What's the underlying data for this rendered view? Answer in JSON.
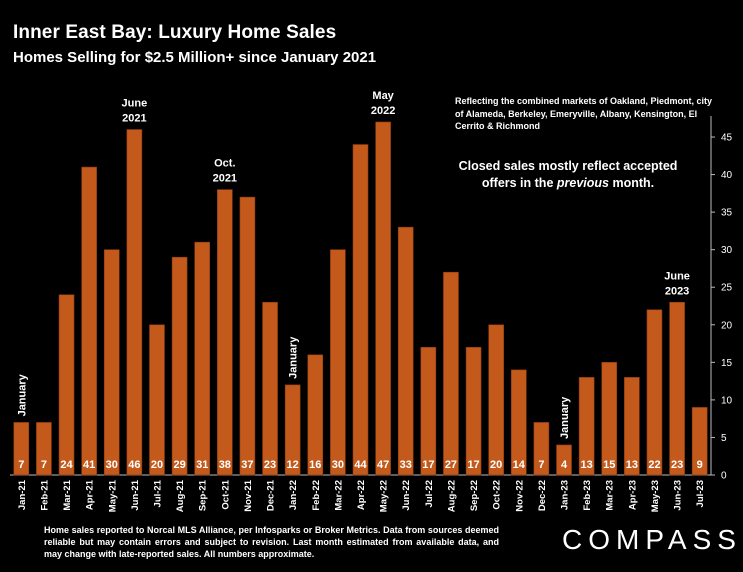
{
  "header": {
    "title": "Inner East Bay: Luxury Home Sales",
    "subtitle": "Homes Selling for $2.5 Million+ since January 2021"
  },
  "notes": {
    "markets": "Reflecting the combined markets of Oakland, Piedmont, city of Alameda, Berkeley, Emeryville, Albany, Kensington, El Cerrito & Richmond",
    "closed_sales_pre": "Closed sales mostly reflect accepted offers in the ",
    "closed_sales_em": "previous",
    "closed_sales_post": " month."
  },
  "footer": {
    "disclaimer": "Home sales reported to Norcal MLS Alliance, per Infosparks or Broker Metrics. Data from sources deemed reliable but may contain errors and subject to revision. Last month estimated from available data, and may change with late-reported sales. All numbers approximate.",
    "logo": "COMPASS"
  },
  "colors": {
    "bar": "#C35A1C",
    "bar_edge": "#8A3A10",
    "background": "#000000",
    "text": "#FFFFFF"
  },
  "chart_data": {
    "type": "bar",
    "title": "Inner East Bay: Luxury Home Sales",
    "subtitle": "Homes Selling for $2.5 Million+ since January 2021",
    "categories": [
      "Jan-21",
      "Feb-21",
      "Mar-21",
      "Apr-21",
      "May-21",
      "Jun-21",
      "Jul-21",
      "Aug-21",
      "Sep-21",
      "Oct-21",
      "Nov-21",
      "Dec-21",
      "Jan-22",
      "Feb-22",
      "Mar-22",
      "Apr-22",
      "May-22",
      "Jun-22",
      "Jul-22",
      "Aug-22",
      "Sep-22",
      "Oct-22",
      "Nov-22",
      "Dec-22",
      "Jan-23",
      "Feb-23",
      "Mar-23",
      "Apr-23",
      "May-23",
      "Jun-23",
      "Jul-23"
    ],
    "values": [
      7,
      7,
      24,
      41,
      30,
      46,
      20,
      29,
      31,
      38,
      37,
      23,
      12,
      16,
      30,
      44,
      47,
      33,
      17,
      27,
      17,
      20,
      14,
      7,
      4,
      13,
      15,
      13,
      22,
      23,
      9
    ],
    "data_labels": [
      "7",
      "7",
      "24",
      "41",
      "30",
      "46",
      "20",
      "29",
      "31",
      "38",
      "37",
      "23",
      "12",
      "16",
      "30",
      "44",
      "47",
      "33",
      "17",
      "27",
      "17",
      "20",
      "14",
      "7",
      "4",
      "13",
      "15",
      "13",
      "22",
      "23",
      "9"
    ],
    "ylim": [
      0,
      47
    ],
    "yticks": [
      "0",
      "5",
      "10",
      "15",
      "20",
      "25",
      "30",
      "35",
      "40",
      "45"
    ],
    "y_axis_side": "right",
    "grid": false,
    "annotations": [
      {
        "category": "Jan-21",
        "text": "January",
        "orientation": "vertical"
      },
      {
        "category": "Jun-21",
        "text": "June\n2021",
        "orientation": "horizontal"
      },
      {
        "category": "Oct-21",
        "text": "Oct.\n2021",
        "orientation": "horizontal"
      },
      {
        "category": "Jan-22",
        "text": "January",
        "orientation": "vertical"
      },
      {
        "category": "May-22",
        "text": "May\n2022",
        "orientation": "horizontal"
      },
      {
        "category": "Jan-23",
        "text": "January",
        "orientation": "vertical"
      },
      {
        "category": "Jun-23",
        "text": "June\n2023",
        "orientation": "horizontal"
      }
    ]
  }
}
